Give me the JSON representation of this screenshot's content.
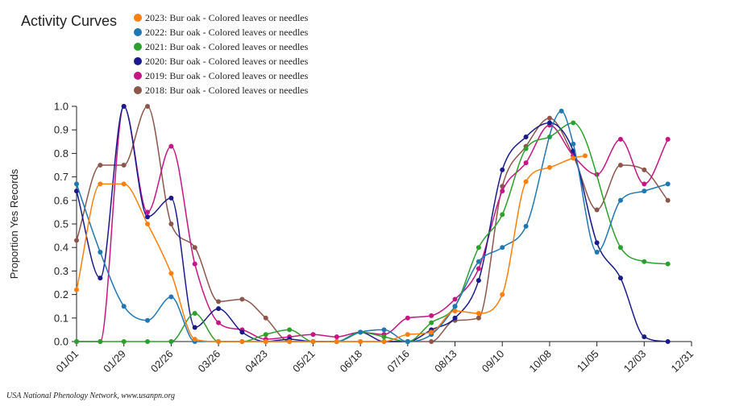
{
  "chart_data": {
    "type": "line",
    "title": "Activity Curves",
    "ylabel": "Proportion Yes Records",
    "xlabel": "",
    "footer": "USA National Phenology Network, www.usanpn.org",
    "ylim": [
      0,
      1
    ],
    "y_ticks": [
      0,
      0.1,
      0.2,
      0.3,
      0.4,
      0.5,
      0.6,
      0.7,
      0.8,
      0.9,
      1
    ],
    "y_tick_labels": [
      "0.0",
      "0.1",
      "0.2",
      "0.3",
      "0.4",
      "0.5",
      "0.6",
      "0.7",
      "0.8",
      "0.9",
      "1.0"
    ],
    "x_ticks": [
      "01/01",
      "01/29",
      "02/26",
      "03/26",
      "04/23",
      "05/21",
      "06/18",
      "07/16",
      "08/13",
      "09/10",
      "10/08",
      "11/05",
      "12/03",
      "12/31"
    ],
    "legend_position": "top",
    "series": [
      {
        "name": "2023: Bur oak - Colored leaves or needles",
        "color": "#ff7f0e",
        "points": [
          [
            "01/01",
            0.22
          ],
          [
            "01/15",
            0.67
          ],
          [
            "01/29",
            0.67
          ],
          [
            "02/12",
            0.5
          ],
          [
            "02/26",
            0.29
          ],
          [
            "03/12",
            0.01
          ],
          [
            "03/26",
            0.0
          ],
          [
            "04/09",
            0.0
          ],
          [
            "04/23",
            0.0
          ],
          [
            "05/07",
            0.0
          ],
          [
            "05/21",
            0.0
          ],
          [
            "06/04",
            0.0
          ],
          [
            "06/18",
            0.0
          ],
          [
            "07/02",
            0.0
          ],
          [
            "07/16",
            0.03
          ],
          [
            "07/30",
            0.04
          ],
          [
            "08/13",
            0.13
          ],
          [
            "08/27",
            0.12
          ],
          [
            "09/10",
            0.2
          ],
          [
            "09/24",
            0.68
          ],
          [
            "10/08",
            0.74
          ],
          [
            "10/22",
            0.78
          ],
          [
            "10/29",
            0.79
          ]
        ]
      },
      {
        "name": "2022: Bur oak - Colored leaves or needles",
        "color": "#1f77b4",
        "points": [
          [
            "01/01",
            0.67
          ],
          [
            "01/15",
            0.38
          ],
          [
            "01/29",
            0.15
          ],
          [
            "02/12",
            0.09
          ],
          [
            "02/26",
            0.19
          ],
          [
            "03/12",
            0.0
          ],
          [
            "03/26",
            0.0
          ],
          [
            "04/09",
            0.0
          ],
          [
            "04/23",
            0.0
          ],
          [
            "05/07",
            0.0
          ],
          [
            "05/21",
            0.0
          ],
          [
            "06/04",
            0.0
          ],
          [
            "06/18",
            0.04
          ],
          [
            "07/02",
            0.05
          ],
          [
            "07/16",
            0.0
          ],
          [
            "07/30",
            0.03
          ],
          [
            "08/13",
            0.15
          ],
          [
            "08/27",
            0.34
          ],
          [
            "09/10",
            0.4
          ],
          [
            "09/24",
            0.49
          ],
          [
            "10/15",
            0.98
          ],
          [
            "10/22",
            0.84
          ],
          [
            "11/05",
            0.38
          ],
          [
            "11/19",
            0.6
          ],
          [
            "12/03",
            0.64
          ],
          [
            "12/17",
            0.67
          ]
        ]
      },
      {
        "name": "2021: Bur oak - Colored leaves or needles",
        "color": "#2ca02c",
        "points": [
          [
            "01/01",
            0.0
          ],
          [
            "01/15",
            0.0
          ],
          [
            "01/29",
            0.0
          ],
          [
            "02/12",
            0.0
          ],
          [
            "02/26",
            0.0
          ],
          [
            "03/12",
            0.12
          ],
          [
            "03/26",
            0.0
          ],
          [
            "04/09",
            0.0
          ],
          [
            "04/23",
            0.03
          ],
          [
            "05/07",
            0.05
          ],
          [
            "05/21",
            0.0
          ],
          [
            "06/04",
            0.0
          ],
          [
            "06/18",
            0.04
          ],
          [
            "07/02",
            0.02
          ],
          [
            "07/16",
            0.0
          ],
          [
            "07/30",
            0.08
          ],
          [
            "08/13",
            0.15
          ],
          [
            "08/27",
            0.4
          ],
          [
            "09/10",
            0.54
          ],
          [
            "09/24",
            0.82
          ],
          [
            "10/08",
            0.87
          ],
          [
            "10/22",
            0.93
          ],
          [
            "11/19",
            0.4
          ],
          [
            "12/03",
            0.34
          ],
          [
            "12/17",
            0.33
          ]
        ]
      },
      {
        "name": "2020: Bur oak - Colored leaves or needles",
        "color": "#1a1a8c",
        "points": [
          [
            "01/01",
            0.64
          ],
          [
            "01/15",
            0.27
          ],
          [
            "01/29",
            1.0
          ],
          [
            "02/12",
            0.53
          ],
          [
            "02/26",
            0.61
          ],
          [
            "03/12",
            0.06
          ],
          [
            "03/26",
            0.14
          ],
          [
            "04/09",
            0.04
          ],
          [
            "04/23",
            0.0
          ],
          [
            "05/07",
            0.01
          ],
          [
            "05/21",
            0.0
          ],
          [
            "06/04",
            0.0
          ],
          [
            "06/18",
            0.04
          ],
          [
            "07/02",
            0.0
          ],
          [
            "07/16",
            0.0
          ],
          [
            "07/30",
            0.05
          ],
          [
            "08/13",
            0.1
          ],
          [
            "08/27",
            0.26
          ],
          [
            "09/10",
            0.73
          ],
          [
            "09/24",
            0.87
          ],
          [
            "10/08",
            0.93
          ],
          [
            "10/22",
            0.81
          ],
          [
            "11/05",
            0.42
          ],
          [
            "11/19",
            0.27
          ],
          [
            "12/03",
            0.02
          ],
          [
            "12/17",
            0.0
          ]
        ]
      },
      {
        "name": "2019: Bur oak - Colored leaves or needles",
        "color": "#c71585",
        "points": [
          [
            "01/01",
            0.0
          ],
          [
            "01/15",
            0.0
          ],
          [
            "01/29",
            1.0
          ],
          [
            "02/12",
            0.55
          ],
          [
            "02/26",
            0.83
          ],
          [
            "03/12",
            0.33
          ],
          [
            "03/26",
            0.08
          ],
          [
            "04/09",
            0.05
          ],
          [
            "04/23",
            0.01
          ],
          [
            "05/07",
            0.02
          ],
          [
            "05/21",
            0.03
          ],
          [
            "06/04",
            0.02
          ],
          [
            "06/18",
            0.04
          ],
          [
            "07/02",
            0.03
          ],
          [
            "07/16",
            0.1
          ],
          [
            "07/30",
            0.11
          ],
          [
            "08/13",
            0.18
          ],
          [
            "08/27",
            0.31
          ],
          [
            "09/10",
            0.64
          ],
          [
            "09/24",
            0.76
          ],
          [
            "10/08",
            0.92
          ],
          [
            "10/22",
            0.79
          ],
          [
            "11/05",
            0.71
          ],
          [
            "11/19",
            0.86
          ],
          [
            "12/03",
            0.67
          ],
          [
            "12/17",
            0.86
          ]
        ]
      },
      {
        "name": "2018: Bur oak - Colored leaves or needles",
        "color": "#8c564b",
        "points": [
          [
            "01/01",
            0.43
          ],
          [
            "01/15",
            0.75
          ],
          [
            "01/29",
            0.75
          ],
          [
            "02/12",
            1.0
          ],
          [
            "02/26",
            0.5
          ],
          [
            "03/12",
            0.4
          ],
          [
            "03/26",
            0.17
          ],
          [
            "04/09",
            0.18
          ],
          [
            "04/23",
            0.1
          ],
          [
            "05/07",
            0.0
          ],
          [
            "05/21",
            0.0
          ],
          [
            "06/04",
            0.0
          ],
          [
            "06/18",
            0.0
          ],
          [
            "07/02",
            0.0
          ],
          [
            "07/16",
            0.0
          ],
          [
            "07/30",
            0.0
          ],
          [
            "08/13",
            0.09
          ],
          [
            "08/27",
            0.1
          ],
          [
            "09/10",
            0.66
          ],
          [
            "09/24",
            0.83
          ],
          [
            "10/08",
            0.95
          ],
          [
            "10/22",
            0.79
          ],
          [
            "11/05",
            0.56
          ],
          [
            "11/19",
            0.75
          ],
          [
            "12/03",
            0.73
          ],
          [
            "12/17",
            0.6
          ]
        ]
      }
    ]
  }
}
